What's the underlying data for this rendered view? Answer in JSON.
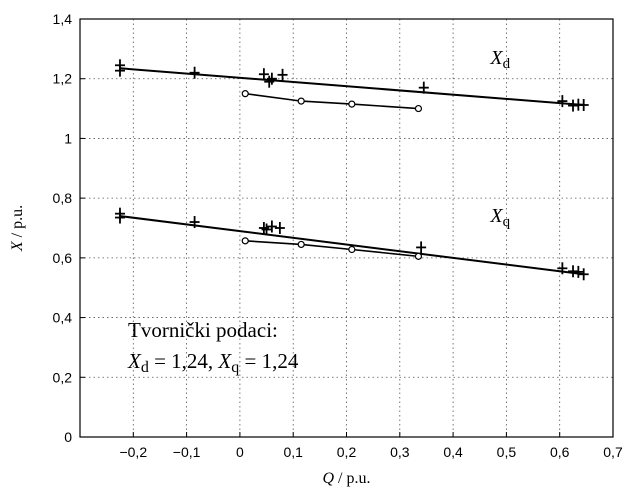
{
  "chart_data": {
    "type": "line",
    "xlabel_var": "Q",
    "xlabel_unit": " / p.u.",
    "ylabel_var": "X",
    "ylabel_unit": " / p.u.",
    "xlim": [
      -0.3,
      0.7
    ],
    "ylim": [
      0,
      1.4
    ],
    "xticks": [
      -0.2,
      -0.1,
      0,
      0.1,
      0.2,
      0.3,
      0.4,
      0.5,
      0.6,
      0.7
    ],
    "xtick_labels": [
      "−0,2",
      "−0,1",
      "0",
      "0,1",
      "0,2",
      "0,3",
      "0,4",
      "0,5",
      "0,6",
      "0,7"
    ],
    "yticks": [
      0,
      0.2,
      0.4,
      0.6,
      0.8,
      1,
      1.2,
      1.4
    ],
    "ytick_labels": [
      "0",
      "0,2",
      "0,4",
      "0,6",
      "0,8",
      "1",
      "1,2",
      "1,4"
    ],
    "grid": true,
    "series": [
      {
        "marker": "plus",
        "line": "fit",
        "x": [
          -0.225,
          -0.225,
          -0.085,
          0.045,
          0.055,
          0.06,
          0.08,
          0.345,
          0.605,
          0.625,
          0.635,
          0.645
        ],
        "y": [
          1.245,
          1.227,
          1.22,
          1.215,
          1.19,
          1.2,
          1.213,
          1.17,
          1.125,
          1.11,
          1.113,
          1.112
        ],
        "fit_x": [
          -0.225,
          0.645
        ],
        "fit_y": [
          1.235,
          1.112
        ]
      },
      {
        "marker": "circle",
        "line": "connect",
        "x": [
          0.01,
          0.115,
          0.21,
          0.335
        ],
        "y": [
          1.15,
          1.125,
          1.115,
          1.1
        ]
      },
      {
        "marker": "plus",
        "line": "fit",
        "x": [
          -0.225,
          -0.225,
          -0.085,
          0.045,
          0.05,
          0.06,
          0.075,
          0.34,
          0.605,
          0.625,
          0.635,
          0.645
        ],
        "y": [
          0.748,
          0.735,
          0.72,
          0.7,
          0.695,
          0.705,
          0.7,
          0.635,
          0.565,
          0.555,
          0.553,
          0.545
        ],
        "fit_x": [
          -0.225,
          0.645
        ],
        "fit_y": [
          0.74,
          0.545
        ]
      },
      {
        "marker": "circle",
        "line": "connect",
        "x": [
          0.01,
          0.115,
          0.21,
          0.335
        ],
        "y": [
          0.657,
          0.645,
          0.628,
          0.605
        ]
      }
    ],
    "series_labels": [
      {
        "var": "X",
        "sub": "d",
        "x": 0.47,
        "y": 1.25
      },
      {
        "var": "X",
        "sub": "q",
        "x": 0.47,
        "y": 0.72
      }
    ],
    "annotation": {
      "line1": "Tvornički podaci:",
      "line2_a_var": "X",
      "line2_a_sub": "d",
      "line2_a_val": " = 1,24, ",
      "line2_b_var": "X",
      "line2_b_sub": "q",
      "line2_b_val": " = 1,24"
    }
  }
}
